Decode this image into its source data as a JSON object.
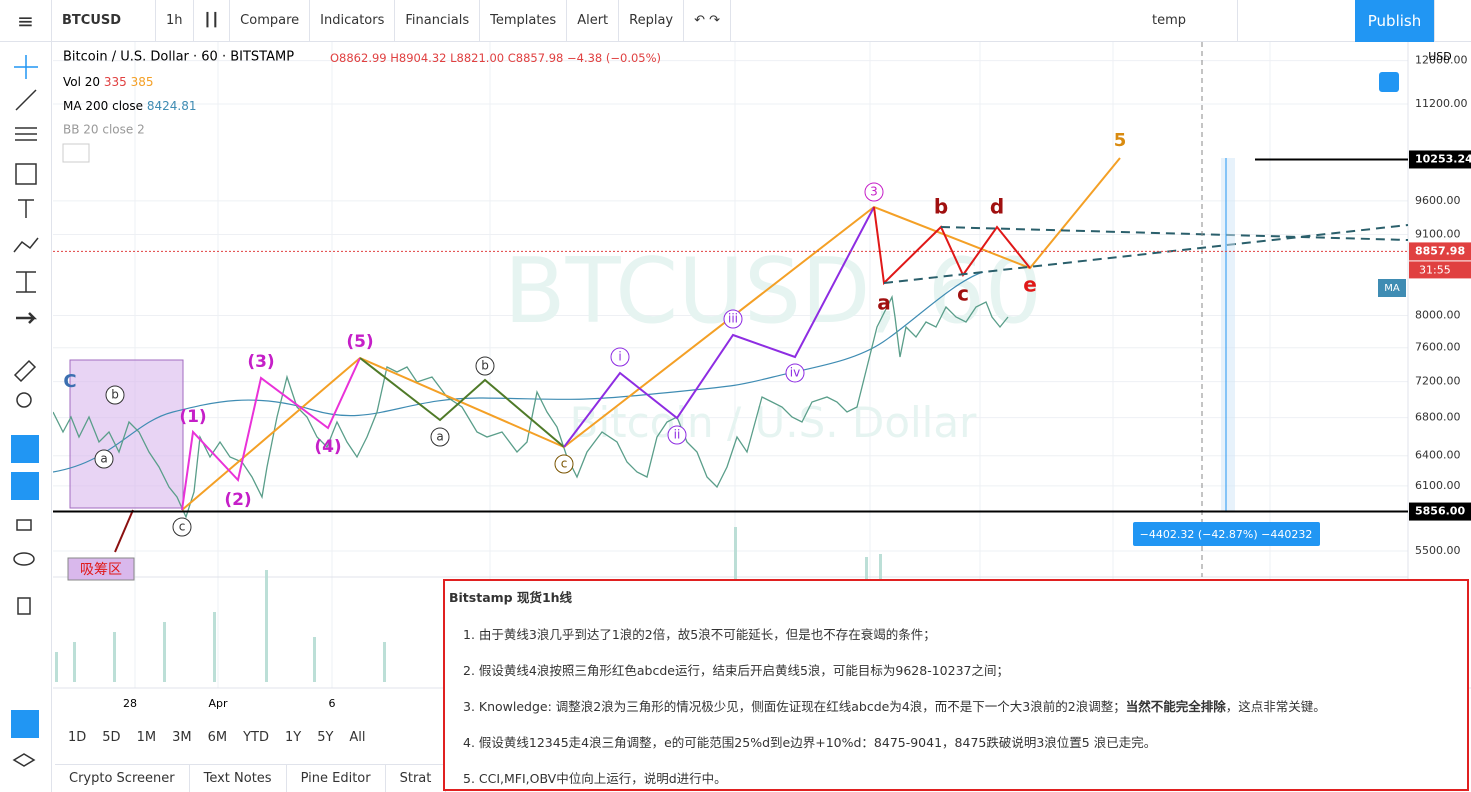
{
  "toolbar": {
    "symbol": "BTCUSD",
    "interval": "1h",
    "compare": "Compare",
    "indicators": "Indicators",
    "financials": "Financials",
    "templates": "Templates",
    "alert": "Alert",
    "replay": "Replay",
    "layout": "temp",
    "publish": "Publish"
  },
  "legend": {
    "title": "Bitcoin / U.S. Dollar · 60 · BITSTAMP",
    "open": "O8862.99",
    "high": "H8904.32",
    "low": "L8821.00",
    "close": "C8857.98",
    "change": "−4.38 (−0.05%)",
    "vol": "Vol 20",
    "vol_a": "335",
    "vol_b": "385",
    "ma": "MA 200 close",
    "ma_value": "8424.81",
    "bb": "BB 20 close 2"
  },
  "price_axis": {
    "currency": "USD",
    "scale": "log",
    "range": [
      5277,
      12360
    ],
    "ticks": [
      {
        "value": 5500,
        "label": "5500.00"
      },
      {
        "value": 6100,
        "label": "6100.00"
      },
      {
        "value": 6400,
        "label": "6400.00"
      },
      {
        "value": 6800,
        "label": "6800.00"
      },
      {
        "value": 7200,
        "label": "7200.00"
      },
      {
        "value": 7600,
        "label": "7600.00"
      },
      {
        "value": 8000,
        "label": "8000.00"
      },
      {
        "value": 9100,
        "label": "9100.00"
      },
      {
        "value": 9600,
        "label": "9600.00"
      },
      {
        "value": 11200,
        "label": "11200.00"
      },
      {
        "value": 12000,
        "label": "12000.00"
      }
    ],
    "markers": [
      {
        "value": 10253.24,
        "label": "10253.24"
      },
      {
        "value": 5856,
        "label": "5856.00"
      },
      {
        "value": 8857.98,
        "label": "8857.98"
      }
    ],
    "countdown": "31:55",
    "ma_tag": "MA"
  },
  "time_axis": [
    "28",
    "Apr",
    "6"
  ],
  "ranges": [
    "1D",
    "5D",
    "1M",
    "3M",
    "6M",
    "YTD",
    "1Y",
    "5Y",
    "All"
  ],
  "bottom_tabs": [
    "Crypto Screener",
    "Text Notes",
    "Pine Editor",
    "Strat"
  ],
  "watermark": {
    "symbol": "BTCUSD, 60",
    "name": "Bitcoin / U.S. Dollar"
  },
  "annotations": [
    "C",
    "b",
    "a",
    "c",
    "(1)",
    "(2)",
    "(3)",
    "(4)",
    "(5)",
    "b",
    "a",
    "c",
    "i",
    "ii",
    "iii",
    "iv",
    "3",
    "a",
    "b",
    "c",
    "d",
    "e",
    "5"
  ],
  "measure": "−4402.32 (−42.87%) −440232",
  "zone_label": "吸筹区",
  "note": {
    "title": "Bitstamp 现货1h线",
    "items": [
      "1. 由于黄线3浪几乎到达了1浪的2倍，故5浪不可能延长，但是也不存在衰竭的条件；",
      "2. 假设黄线4浪按照三角形红色abcde运行，结束后开启黄线5浪，可能目标为9628-10237之间；",
      "5. CCI,MFI,OBV中位向上运行，说明d进行中。"
    ],
    "item3": [
      "3. Knowledge: 调整浪2浪为三角形的情况极少见，侧面佐证现在红线abcde为4浪，而不是下一个大3浪前的2浪调整；",
      "当然不能完全排除",
      "，这点非常关键。"
    ],
    "item4": "4. 假设黄线12345走4浪三角调整，e的可能范围25%d到e边界+10%d：8475-9041，8475跌破说明3浪位置5 浪已走完。"
  }
}
